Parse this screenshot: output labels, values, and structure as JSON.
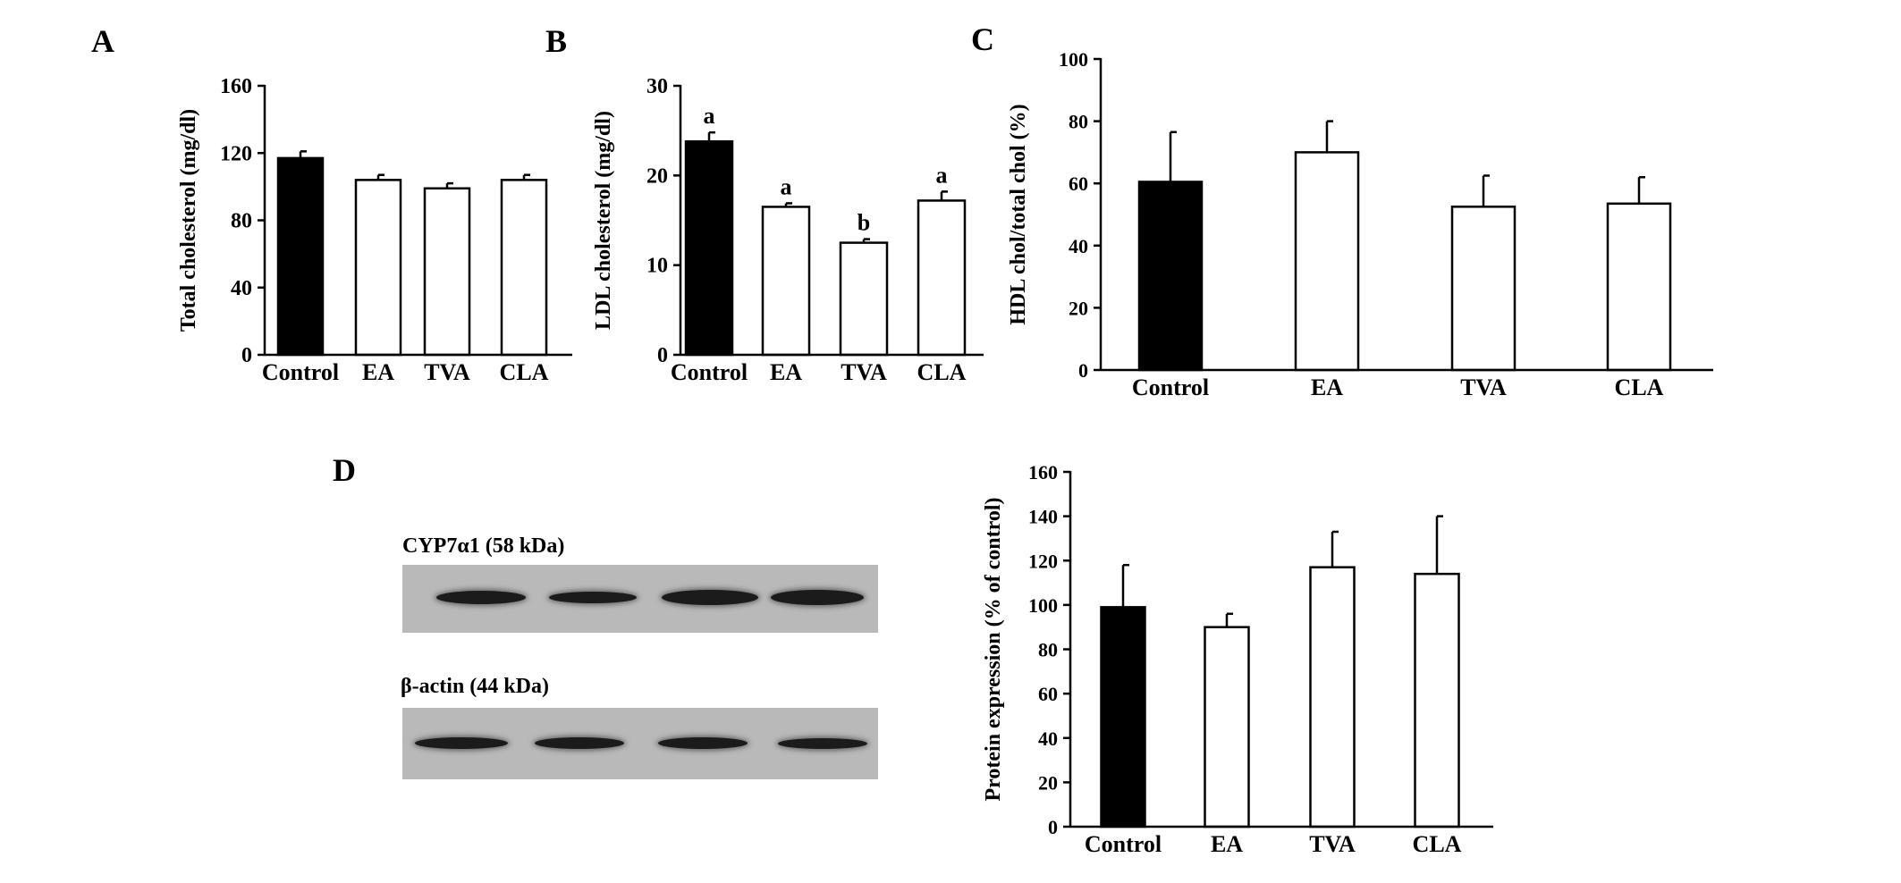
{
  "panel_labels": {
    "a": "A",
    "b": "B",
    "c": "C",
    "d": "D"
  },
  "western_blot": {
    "cyp_label": "CYP7α1 (58 kDa)",
    "actin_label": "β-actin (44 kDa)",
    "lanes": 4
  },
  "colors": {
    "control": "#000000",
    "treatment": "#ffffff",
    "axis": "#000000",
    "blot_bg": "#b9b9b9"
  },
  "chart_data": [
    {
      "panel": "A",
      "type": "bar",
      "title": "",
      "xlabel": "",
      "ylabel": "Total cholesterol (mg/dl)",
      "categories": [
        "Control",
        "EA",
        "TVA",
        "CLA"
      ],
      "values": [
        117,
        104,
        99,
        104
      ],
      "errors": [
        4,
        3,
        3,
        3
      ],
      "annotations": [
        "",
        "",
        "",
        ""
      ],
      "yticks": [
        0,
        40,
        80,
        120,
        160
      ],
      "ylim": [
        0,
        160
      ],
      "grid": false
    },
    {
      "panel": "B",
      "type": "bar",
      "title": "",
      "xlabel": "",
      "ylabel": "LDL cholesterol (mg/dl)",
      "categories": [
        "Control",
        "EA",
        "TVA",
        "CLA"
      ],
      "values": [
        23.8,
        16.5,
        12.5,
        17.2
      ],
      "errors": [
        1.0,
        0.4,
        0.4,
        1.0
      ],
      "annotations": [
        "a",
        "a",
        "b",
        "a"
      ],
      "yticks": [
        0,
        10,
        20,
        30
      ],
      "ylim": [
        0,
        30
      ],
      "grid": false
    },
    {
      "panel": "C",
      "type": "bar",
      "title": "",
      "xlabel": "",
      "ylabel": "HDL chol/total chol (%)",
      "categories": [
        "Control",
        "EA",
        "TVA",
        "CLA"
      ],
      "values": [
        60.5,
        70,
        52.5,
        53.5
      ],
      "errors": [
        16,
        10,
        10,
        8.5
      ],
      "annotations": [
        "",
        "",
        "",
        ""
      ],
      "yticks": [
        0,
        20,
        40,
        60,
        80,
        100
      ],
      "ylim": [
        0,
        100
      ],
      "grid": false
    },
    {
      "panel": "D",
      "type": "bar",
      "title": "",
      "xlabel": "",
      "ylabel": "Protein expression (% of control)",
      "categories": [
        "Control",
        "EA",
        "TVA",
        "CLA"
      ],
      "values": [
        99,
        90,
        117,
        114
      ],
      "errors": [
        19,
        6,
        16,
        26
      ],
      "annotations": [
        "",
        "",
        "",
        ""
      ],
      "yticks": [
        0,
        20,
        40,
        60,
        80,
        100,
        120,
        140,
        160
      ],
      "ylim": [
        0,
        160
      ],
      "grid": false
    }
  ]
}
